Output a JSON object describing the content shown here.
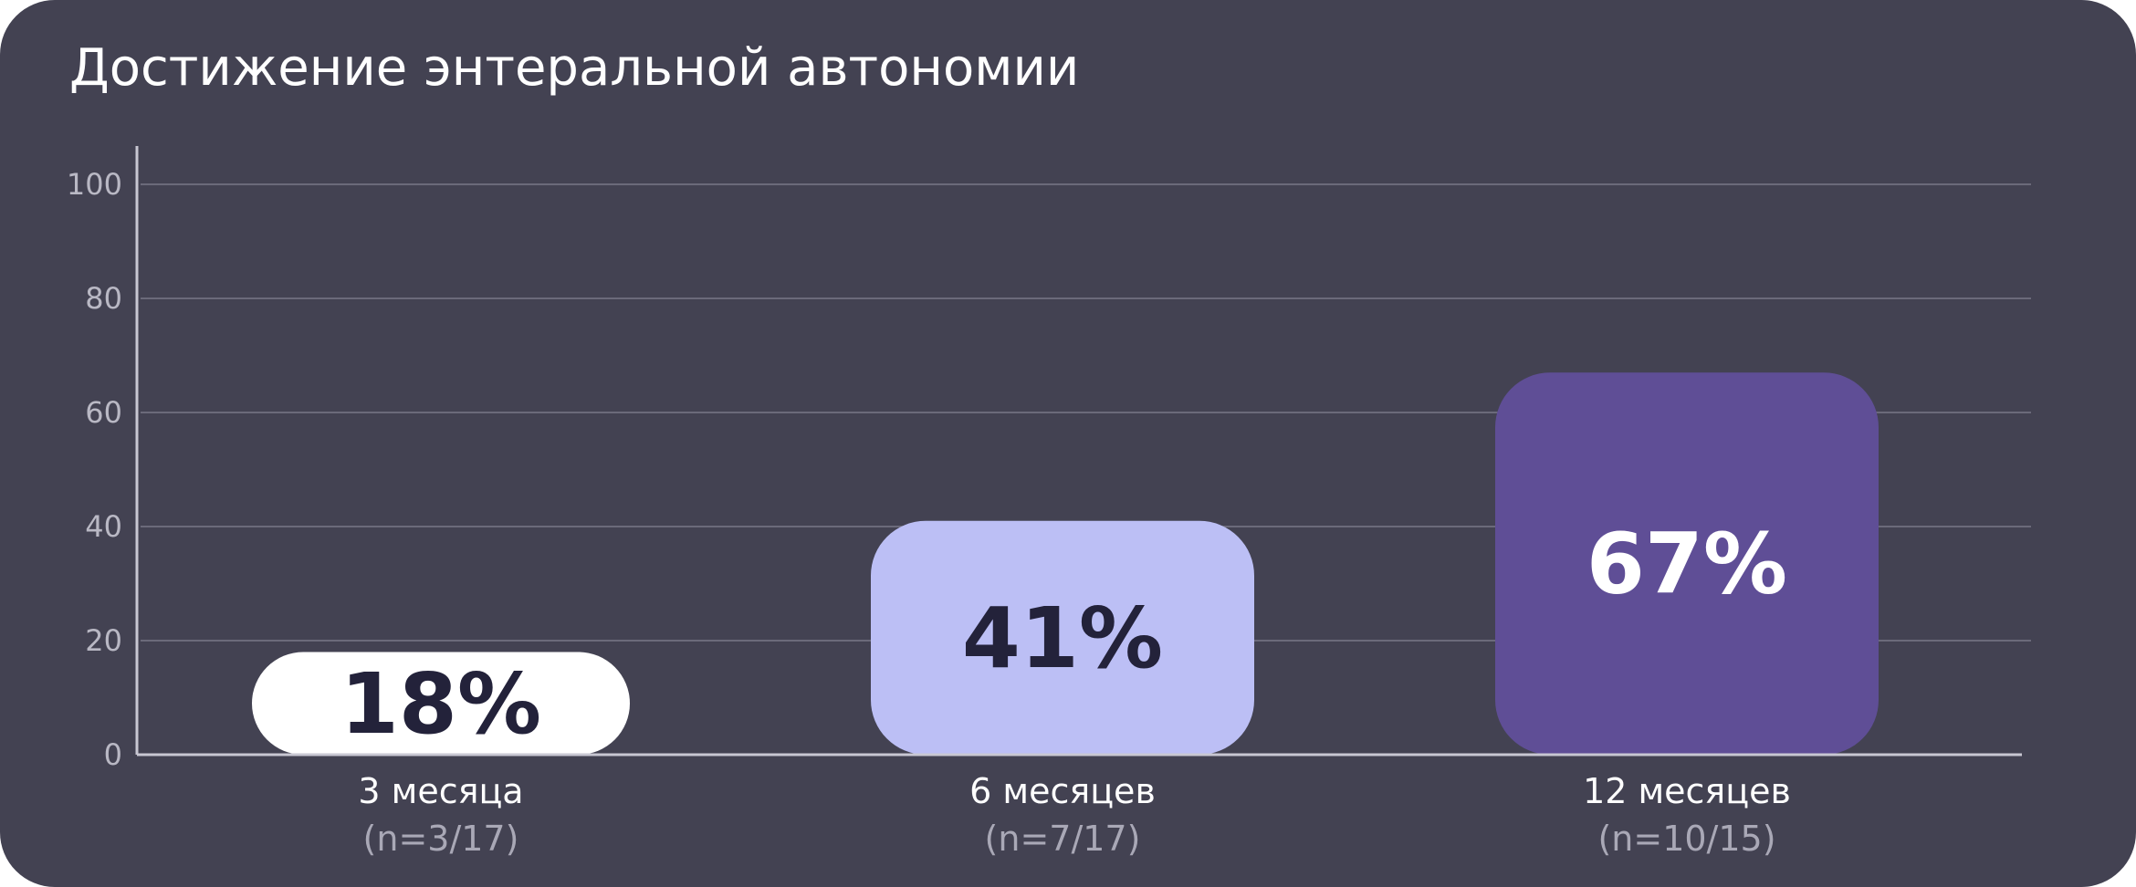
{
  "chart_data": {
    "type": "bar",
    "title": "Достижение энтеральной автономии",
    "xlabel": "",
    "ylabel": "",
    "ylim": [
      0,
      100
    ],
    "yticks": [
      0,
      20,
      40,
      60,
      80,
      100
    ],
    "grid": true,
    "categories": [
      "3 месяца",
      "6 месяцев",
      "12 месяцев"
    ],
    "subcategories": [
      "(n=3/17)",
      "(n=7/17)",
      "(n=10/15)"
    ],
    "values": [
      18,
      41,
      67
    ],
    "value_labels": [
      "18%",
      "41%",
      "67%"
    ],
    "bar_colors": [
      "#ffffff",
      "#bcbff5",
      "#5f4e96"
    ],
    "label_colors": [
      "#23223a",
      "#23223a",
      "#ffffff"
    ]
  },
  "colors": {
    "background": "#434252",
    "gridline": "#6b6a7a",
    "axis": "#c8c7d2"
  }
}
